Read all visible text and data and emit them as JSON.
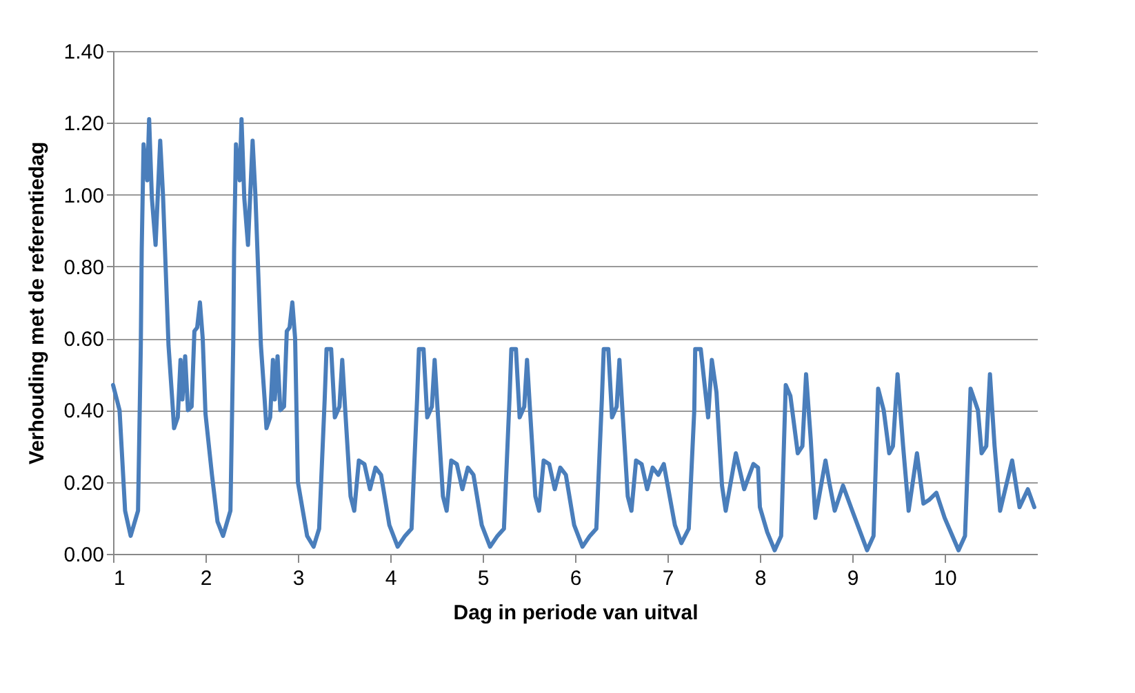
{
  "chart_data": {
    "type": "line",
    "xlabel": "Dag in periode van uitval",
    "ylabel": "Verhouding  met de referentiedag",
    "x": [
      1,
      1.07,
      1.13,
      1.19,
      1.27,
      1.3,
      1.31,
      1.33,
      1.37,
      1.39,
      1.42,
      1.46,
      1.51,
      1.54,
      1.6,
      1.64,
      1.66,
      1.7,
      1.73,
      1.75,
      1.78,
      1.81,
      1.85,
      1.88,
      1.91,
      1.94,
      1.97,
      2,
      2.07,
      2.13,
      2.19,
      2.27,
      2.3,
      2.31,
      2.33,
      2.37,
      2.39,
      2.42,
      2.46,
      2.51,
      2.54,
      2.6,
      2.64,
      2.66,
      2.7,
      2.73,
      2.75,
      2.78,
      2.81,
      2.85,
      2.88,
      2.91,
      2.94,
      2.97,
      3,
      3.1,
      3.17,
      3.23,
      3.29,
      3.31,
      3.36,
      3.4,
      3.45,
      3.48,
      3.51,
      3.57,
      3.61,
      3.66,
      3.72,
      3.78,
      3.84,
      3.9,
      3.99,
      4.08,
      4.16,
      4.23,
      4.29,
      4.31,
      4.36,
      4.4,
      4.45,
      4.48,
      4.51,
      4.57,
      4.61,
      4.66,
      4.72,
      4.78,
      4.84,
      4.9,
      4.99,
      5.08,
      5.16,
      5.23,
      5.29,
      5.31,
      5.36,
      5.4,
      5.45,
      5.48,
      5.51,
      5.57,
      5.61,
      5.66,
      5.72,
      5.78,
      5.84,
      5.9,
      5.99,
      6.08,
      6.16,
      6.23,
      6.29,
      6.31,
      6.36,
      6.4,
      6.45,
      6.48,
      6.51,
      6.57,
      6.61,
      6.66,
      6.72,
      6.78,
      6.84,
      6.9,
      6.96,
      7.08,
      7.15,
      7.23,
      7.29,
      7.3,
      7.36,
      7.44,
      7.48,
      7.53,
      7.59,
      7.63,
      7.74,
      7.83,
      7.93,
      7.98,
      8,
      8.08,
      8.16,
      8.23,
      8.28,
      8.33,
      8.41,
      8.46,
      8.5,
      8.55,
      8.6,
      8.71,
      8.75,
      8.81,
      8.9,
      9,
      9.16,
      9.23,
      9.28,
      9.34,
      9.4,
      9.44,
      9.49,
      9.55,
      9.61,
      9.7,
      9.77,
      9.83,
      9.91,
      10,
      10.15,
      10.22,
      10.28,
      10.36,
      10.4,
      10.45,
      10.49,
      10.54,
      10.6,
      10.73,
      10.81,
      10.9,
      10.97
    ],
    "values": [
      0.47,
      0.4,
      0.12,
      0.05,
      0.12,
      0.58,
      0.85,
      1.14,
      1.04,
      1.21,
      0.99,
      0.86,
      1.15,
      1.0,
      0.58,
      0.43,
      0.35,
      0.38,
      0.54,
      0.43,
      0.55,
      0.4,
      0.41,
      0.62,
      0.63,
      0.7,
      0.6,
      0.39,
      0.22,
      0.09,
      0.05,
      0.12,
      0.58,
      0.85,
      1.14,
      1.04,
      1.21,
      0.99,
      0.86,
      1.15,
      1.0,
      0.58,
      0.43,
      0.35,
      0.38,
      0.54,
      0.43,
      0.55,
      0.4,
      0.41,
      0.62,
      0.63,
      0.7,
      0.6,
      0.2,
      0.05,
      0.02,
      0.07,
      0.43,
      0.57,
      0.57,
      0.38,
      0.41,
      0.54,
      0.41,
      0.16,
      0.12,
      0.26,
      0.25,
      0.18,
      0.24,
      0.22,
      0.08,
      0.02,
      0.05,
      0.07,
      0.43,
      0.57,
      0.57,
      0.38,
      0.41,
      0.54,
      0.41,
      0.16,
      0.12,
      0.26,
      0.25,
      0.18,
      0.24,
      0.22,
      0.08,
      0.02,
      0.05,
      0.07,
      0.43,
      0.57,
      0.57,
      0.38,
      0.41,
      0.54,
      0.41,
      0.16,
      0.12,
      0.26,
      0.25,
      0.18,
      0.24,
      0.22,
      0.08,
      0.02,
      0.05,
      0.07,
      0.43,
      0.57,
      0.57,
      0.38,
      0.41,
      0.54,
      0.41,
      0.16,
      0.12,
      0.26,
      0.25,
      0.18,
      0.24,
      0.22,
      0.25,
      0.08,
      0.03,
      0.07,
      0.4,
      0.57,
      0.57,
      0.38,
      0.54,
      0.45,
      0.19,
      0.12,
      0.28,
      0.18,
      0.25,
      0.24,
      0.13,
      0.06,
      0.01,
      0.05,
      0.47,
      0.44,
      0.28,
      0.3,
      0.5,
      0.32,
      0.1,
      0.26,
      0.2,
      0.12,
      0.19,
      0.12,
      0.01,
      0.05,
      0.46,
      0.4,
      0.28,
      0.3,
      0.5,
      0.3,
      0.12,
      0.28,
      0.14,
      0.15,
      0.17,
      0.1,
      0.01,
      0.05,
      0.46,
      0.4,
      0.28,
      0.3,
      0.5,
      0.3,
      0.12,
      0.26,
      0.13,
      0.18,
      0.13
    ],
    "color": "#4a7ebb",
    "xlim": [
      1,
      11
    ],
    "xticks": [
      1,
      2,
      3,
      4,
      5,
      6,
      7,
      8,
      9,
      10
    ],
    "ylim": [
      0,
      1.4
    ],
    "yticks": [
      {
        "value": 0,
        "label": "0.00"
      },
      {
        "value": 0.2,
        "label": "0.20"
      },
      {
        "value": 0.4,
        "label": "0.40"
      },
      {
        "value": 0.6,
        "label": "0.60"
      },
      {
        "value": 0.8,
        "label": "0.80"
      },
      {
        "value": 1.0,
        "label": "1.00"
      },
      {
        "value": 1.2,
        "label": "1.20"
      },
      {
        "value": 1.4,
        "label": "1.40"
      }
    ],
    "grid": "y",
    "marker": "none",
    "line_style": "solid"
  }
}
